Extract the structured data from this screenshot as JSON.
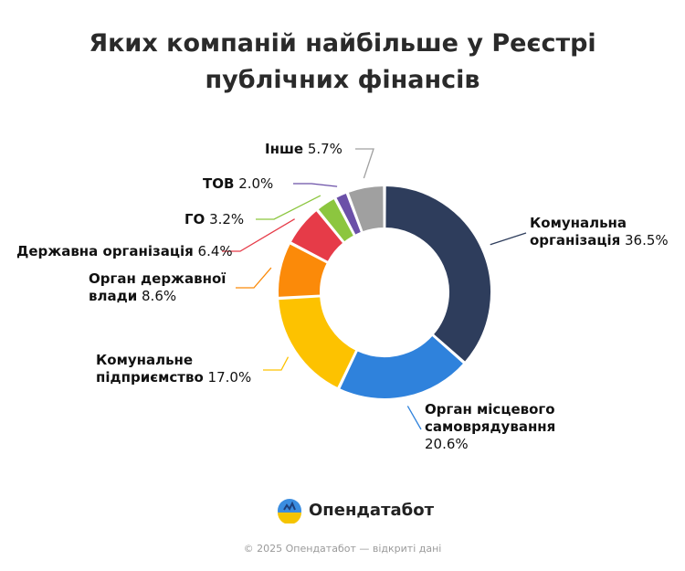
{
  "title_line1": "Яких компаній найбільше у Реєстрі",
  "title_line2": "публічних фінансів",
  "brand": {
    "name": "Опендатабот",
    "icon": "opendatabot-logo-icon",
    "colors": {
      "blue": "#3b8de0",
      "yellow": "#f5c400",
      "dark": "#1e3f7a"
    }
  },
  "footer": "© 2025 Опендатабот — відкриті дані",
  "chart_data": {
    "type": "pie",
    "variant": "donut",
    "unit": "%",
    "start_angle_deg": 0,
    "direction": "clockwise",
    "slices": [
      {
        "label_lines": [
          "Комунальна",
          "організація"
        ],
        "value": 36.5,
        "value_text": "36.5%",
        "color": "#2e3d5c"
      },
      {
        "label_lines": [
          "Орган місцевого",
          "самоврядування"
        ],
        "value": 20.6,
        "value_text": "20.6%",
        "color": "#2f82dc"
      },
      {
        "label_lines": [
          "Комунальне",
          "підприємство"
        ],
        "value": 17.0,
        "value_text": "17.0%",
        "color": "#fdc200"
      },
      {
        "label_lines": [
          "Орган державної",
          "влади"
        ],
        "value": 8.6,
        "value_text": "8.6%",
        "color": "#fb8a09"
      },
      {
        "label_lines": [
          "Державна організація"
        ],
        "value": 6.4,
        "value_text": "6.4%",
        "color": "#e63b48"
      },
      {
        "label_lines": [
          "ГО"
        ],
        "value": 3.2,
        "value_text": "3.2%",
        "color": "#8cc63f"
      },
      {
        "label_lines": [
          "ТОВ"
        ],
        "value": 2.0,
        "value_text": "2.0%",
        "color": "#6b50a8"
      },
      {
        "label_lines": [
          "Інше"
        ],
        "value": 5.7,
        "value_text": "5.7%",
        "color": "#a0a0a0"
      }
    ]
  }
}
